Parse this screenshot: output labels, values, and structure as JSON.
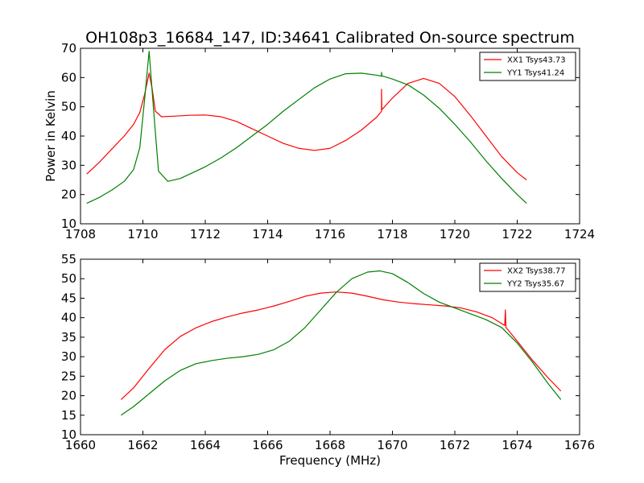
{
  "chart_data": [
    {
      "type": "line",
      "title": "OH108p3_16684_147, ID:34641 Calibrated On-source spectrum",
      "xlabel": "",
      "ylabel": "Power in Kelvin",
      "xlim": [
        1708,
        1724
      ],
      "ylim": [
        10,
        70
      ],
      "xticks": [
        1708,
        1710,
        1712,
        1714,
        1716,
        1718,
        1720,
        1722,
        1724
      ],
      "yticks": [
        10,
        20,
        30,
        40,
        50,
        60,
        70
      ],
      "legend_position": "top-right",
      "grid": false,
      "series": [
        {
          "name": "XX1 Tsys43.73",
          "color": "#ff0000",
          "points": [
            [
              1708.2,
              27.0
            ],
            [
              1708.6,
              31.0
            ],
            [
              1709.0,
              35.5
            ],
            [
              1709.4,
              40.0
            ],
            [
              1709.7,
              44.0
            ],
            [
              1709.9,
              48.0
            ],
            [
              1710.05,
              54.0
            ],
            [
              1710.2,
              61.5
            ],
            [
              1710.3,
              56.0
            ],
            [
              1710.4,
              48.5
            ],
            [
              1710.6,
              46.6
            ],
            [
              1711.0,
              46.8
            ],
            [
              1711.5,
              47.1
            ],
            [
              1712.0,
              47.2
            ],
            [
              1712.5,
              46.6
            ],
            [
              1713.0,
              45.0
            ],
            [
              1713.5,
              42.5
            ],
            [
              1714.0,
              40.0
            ],
            [
              1714.5,
              37.5
            ],
            [
              1715.0,
              35.8
            ],
            [
              1715.5,
              35.1
            ],
            [
              1716.0,
              35.8
            ],
            [
              1716.5,
              38.5
            ],
            [
              1717.0,
              42.0
            ],
            [
              1717.5,
              46.5
            ],
            [
              1717.65,
              48.5
            ],
            [
              1717.65,
              56.0
            ],
            [
              1717.66,
              49.0
            ],
            [
              1718.0,
              53.0
            ],
            [
              1718.5,
              58.0
            ],
            [
              1719.0,
              59.7
            ],
            [
              1719.5,
              58.0
            ],
            [
              1720.0,
              53.5
            ],
            [
              1720.5,
              47.0
            ],
            [
              1721.0,
              40.0
            ],
            [
              1721.5,
              33.0
            ],
            [
              1722.0,
              27.5
            ],
            [
              1722.3,
              25.0
            ]
          ]
        },
        {
          "name": "YY1 Tsys41.24",
          "color": "#008000",
          "points": [
            [
              1708.2,
              17.0
            ],
            [
              1708.6,
              19.0
            ],
            [
              1709.0,
              21.5
            ],
            [
              1709.4,
              24.5
            ],
            [
              1709.7,
              28.5
            ],
            [
              1709.9,
              36.0
            ],
            [
              1710.05,
              52.0
            ],
            [
              1710.2,
              69.0
            ],
            [
              1710.35,
              48.0
            ],
            [
              1710.5,
              28.0
            ],
            [
              1710.8,
              24.5
            ],
            [
              1711.2,
              25.5
            ],
            [
              1711.6,
              27.5
            ],
            [
              1712.0,
              29.5
            ],
            [
              1712.5,
              32.5
            ],
            [
              1713.0,
              36.0
            ],
            [
              1713.5,
              40.0
            ],
            [
              1714.0,
              44.0
            ],
            [
              1714.5,
              48.5
            ],
            [
              1715.0,
              52.5
            ],
            [
              1715.5,
              56.5
            ],
            [
              1716.0,
              59.5
            ],
            [
              1716.5,
              61.3
            ],
            [
              1717.0,
              61.5
            ],
            [
              1717.5,
              60.8
            ],
            [
              1717.65,
              60.5
            ],
            [
              1717.65,
              61.8
            ],
            [
              1717.66,
              60.6
            ],
            [
              1718.0,
              59.5
            ],
            [
              1718.5,
              57.5
            ],
            [
              1719.0,
              54.0
            ],
            [
              1719.5,
              49.5
            ],
            [
              1720.0,
              44.0
            ],
            [
              1720.5,
              38.0
            ],
            [
              1721.0,
              31.5
            ],
            [
              1721.5,
              25.5
            ],
            [
              1722.0,
              20.0
            ],
            [
              1722.3,
              17.0
            ]
          ]
        }
      ]
    },
    {
      "type": "line",
      "title": "",
      "xlabel": "Frequency (MHz)",
      "ylabel": "",
      "xlim": [
        1660,
        1676
      ],
      "ylim": [
        10,
        55
      ],
      "xticks": [
        1660,
        1662,
        1664,
        1666,
        1668,
        1670,
        1672,
        1674,
        1676
      ],
      "yticks": [
        10,
        15,
        20,
        25,
        30,
        35,
        40,
        45,
        50,
        55
      ],
      "legend_position": "top-right",
      "grid": false,
      "series": [
        {
          "name": "XX2 Tsys38.77",
          "color": "#ff0000",
          "points": [
            [
              1661.3,
              19.0
            ],
            [
              1661.7,
              22.0
            ],
            [
              1662.2,
              27.0
            ],
            [
              1662.7,
              31.8
            ],
            [
              1663.2,
              35.2
            ],
            [
              1663.7,
              37.4
            ],
            [
              1664.2,
              39.0
            ],
            [
              1664.7,
              40.2
            ],
            [
              1665.2,
              41.2
            ],
            [
              1665.7,
              42.0
            ],
            [
              1666.2,
              43.0
            ],
            [
              1666.7,
              44.2
            ],
            [
              1667.2,
              45.5
            ],
            [
              1667.7,
              46.3
            ],
            [
              1668.2,
              46.6
            ],
            [
              1668.7,
              46.3
            ],
            [
              1669.2,
              45.5
            ],
            [
              1669.7,
              44.6
            ],
            [
              1670.2,
              44.0
            ],
            [
              1670.7,
              43.6
            ],
            [
              1671.2,
              43.3
            ],
            [
              1671.7,
              43.0
            ],
            [
              1672.2,
              42.5
            ],
            [
              1672.7,
              41.5
            ],
            [
              1673.2,
              40.0
            ],
            [
              1673.6,
              38.0
            ],
            [
              1673.62,
              42.0
            ],
            [
              1673.64,
              37.5
            ],
            [
              1674.0,
              34.0
            ],
            [
              1674.5,
              29.0
            ],
            [
              1675.0,
              24.5
            ],
            [
              1675.4,
              21.2
            ]
          ]
        },
        {
          "name": "YY2 Tsys35.67",
          "color": "#008000",
          "points": [
            [
              1661.3,
              15.0
            ],
            [
              1661.7,
              17.2
            ],
            [
              1662.2,
              20.5
            ],
            [
              1662.7,
              23.8
            ],
            [
              1663.2,
              26.5
            ],
            [
              1663.7,
              28.2
            ],
            [
              1664.2,
              29.0
            ],
            [
              1664.7,
              29.6
            ],
            [
              1665.2,
              30.0
            ],
            [
              1665.7,
              30.6
            ],
            [
              1666.2,
              31.8
            ],
            [
              1666.7,
              34.0
            ],
            [
              1667.2,
              37.5
            ],
            [
              1667.7,
              42.0
            ],
            [
              1668.2,
              46.5
            ],
            [
              1668.7,
              50.0
            ],
            [
              1669.2,
              51.7
            ],
            [
              1669.6,
              52.0
            ],
            [
              1670.0,
              51.3
            ],
            [
              1670.5,
              49.0
            ],
            [
              1671.0,
              46.2
            ],
            [
              1671.5,
              44.0
            ],
            [
              1672.0,
              42.5
            ],
            [
              1672.5,
              41.0
            ],
            [
              1673.0,
              39.5
            ],
            [
              1673.5,
              37.5
            ],
            [
              1674.0,
              33.5
            ],
            [
              1674.5,
              28.5
            ],
            [
              1675.0,
              23.0
            ],
            [
              1675.4,
              19.0
            ]
          ]
        }
      ]
    }
  ]
}
